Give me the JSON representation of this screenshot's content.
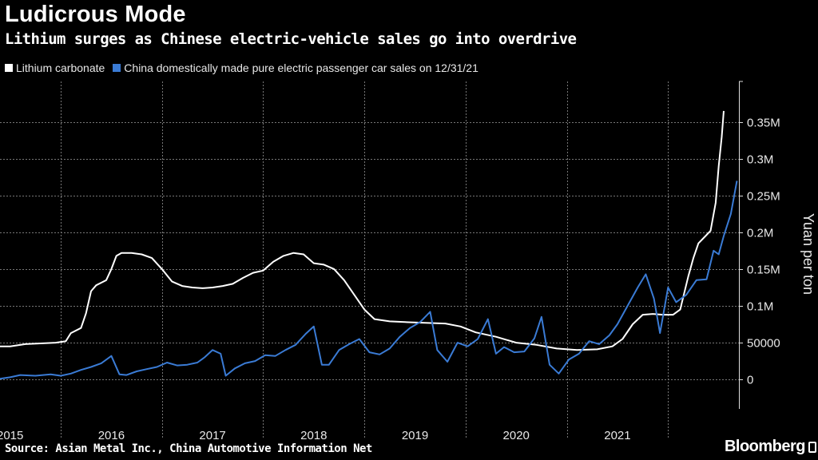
{
  "title": "Ludicrous Mode",
  "subtitle": "Lithium surges as Chinese electric-vehicle sales go into overdrive",
  "source": "Source: Asian Metal Inc., China Automotive Information Net",
  "brand": "Bloomberg",
  "colors": {
    "background": "#000000",
    "lithium": "#ffffff",
    "ev_sales": "#3a7bd5",
    "grid": "#666666"
  },
  "chart_data": {
    "type": "line",
    "title": "Ludicrous Mode",
    "subtitle": "Lithium surges as Chinese electric-vehicle sales go into overdrive",
    "xlabel": "",
    "ylabel": "Yuan per ton",
    "xlim": [
      2014.9,
      2022.2
    ],
    "ylim": [
      -40000,
      405000
    ],
    "x_ticks": [
      2015,
      2016,
      2017,
      2018,
      2019,
      2020,
      2021
    ],
    "x_tick_labels": [
      "2015",
      "2016",
      "2017",
      "2018",
      "2019",
      "2020",
      "2021"
    ],
    "y_ticks": [
      0,
      50000,
      100000,
      150000,
      200000,
      250000,
      300000,
      350000
    ],
    "y_tick_labels": [
      "0",
      "50000",
      "0.1M",
      "0.15M",
      "0.2M",
      "0.25M",
      "0.3M",
      "0.35M"
    ],
    "grid": true,
    "legend_position": "top-left",
    "series": [
      {
        "name": "Lithium carbonate",
        "color": "#ffffff",
        "points": [
          [
            2014.9,
            45000
          ],
          [
            2015.0,
            45000
          ],
          [
            2015.15,
            48000
          ],
          [
            2015.3,
            49000
          ],
          [
            2015.45,
            50000
          ],
          [
            2015.55,
            52000
          ],
          [
            2015.6,
            63000
          ],
          [
            2015.7,
            70000
          ],
          [
            2015.75,
            90000
          ],
          [
            2015.8,
            120000
          ],
          [
            2015.85,
            128000
          ],
          [
            2015.95,
            135000
          ],
          [
            2016.0,
            150000
          ],
          [
            2016.05,
            168000
          ],
          [
            2016.1,
            172000
          ],
          [
            2016.2,
            172000
          ],
          [
            2016.3,
            170000
          ],
          [
            2016.4,
            165000
          ],
          [
            2016.5,
            150000
          ],
          [
            2016.6,
            133000
          ],
          [
            2016.7,
            127000
          ],
          [
            2016.8,
            125000
          ],
          [
            2016.9,
            124000
          ],
          [
            2017.0,
            125000
          ],
          [
            2017.1,
            127000
          ],
          [
            2017.2,
            130000
          ],
          [
            2017.3,
            138000
          ],
          [
            2017.4,
            145000
          ],
          [
            2017.5,
            148000
          ],
          [
            2017.6,
            160000
          ],
          [
            2017.7,
            168000
          ],
          [
            2017.8,
            172000
          ],
          [
            2017.9,
            170000
          ],
          [
            2018.0,
            158000
          ],
          [
            2018.1,
            156000
          ],
          [
            2018.2,
            150000
          ],
          [
            2018.3,
            135000
          ],
          [
            2018.4,
            115000
          ],
          [
            2018.5,
            95000
          ],
          [
            2018.6,
            82000
          ],
          [
            2018.75,
            79000
          ],
          [
            2018.9,
            78000
          ],
          [
            2019.1,
            77000
          ],
          [
            2019.3,
            76000
          ],
          [
            2019.45,
            72000
          ],
          [
            2019.6,
            64000
          ],
          [
            2019.8,
            58000
          ],
          [
            2020.0,
            50000
          ],
          [
            2020.2,
            47000
          ],
          [
            2020.4,
            42000
          ],
          [
            2020.6,
            40000
          ],
          [
            2020.8,
            41000
          ],
          [
            2020.95,
            45000
          ],
          [
            2021.05,
            55000
          ],
          [
            2021.15,
            75000
          ],
          [
            2021.25,
            88000
          ],
          [
            2021.35,
            89000
          ],
          [
            2021.45,
            88000
          ],
          [
            2021.55,
            88000
          ],
          [
            2021.62,
            95000
          ],
          [
            2021.7,
            140000
          ],
          [
            2021.75,
            165000
          ],
          [
            2021.8,
            185000
          ],
          [
            2021.87,
            195000
          ],
          [
            2021.92,
            202000
          ],
          [
            2021.97,
            240000
          ],
          [
            2022.0,
            290000
          ],
          [
            2022.03,
            330000
          ],
          [
            2022.05,
            365000
          ]
        ]
      },
      {
        "name": "China domestically made pure electric passenger car sales on 12/31/21",
        "color": "#3a7bd5",
        "points": [
          [
            2014.9,
            1000
          ],
          [
            2015.0,
            3000
          ],
          [
            2015.1,
            6000
          ],
          [
            2015.25,
            5000
          ],
          [
            2015.4,
            7000
          ],
          [
            2015.5,
            5000
          ],
          [
            2015.6,
            8000
          ],
          [
            2015.7,
            13000
          ],
          [
            2015.8,
            17000
          ],
          [
            2015.9,
            22000
          ],
          [
            2016.0,
            32000
          ],
          [
            2016.08,
            7000
          ],
          [
            2016.15,
            6000
          ],
          [
            2016.25,
            11000
          ],
          [
            2016.35,
            14000
          ],
          [
            2016.45,
            17000
          ],
          [
            2016.55,
            23000
          ],
          [
            2016.65,
            19000
          ],
          [
            2016.75,
            20000
          ],
          [
            2016.85,
            23000
          ],
          [
            2016.92,
            30000
          ],
          [
            2017.0,
            40000
          ],
          [
            2017.08,
            35000
          ],
          [
            2017.13,
            5000
          ],
          [
            2017.22,
            15000
          ],
          [
            2017.32,
            22000
          ],
          [
            2017.42,
            25000
          ],
          [
            2017.52,
            33000
          ],
          [
            2017.62,
            32000
          ],
          [
            2017.72,
            40000
          ],
          [
            2017.82,
            47000
          ],
          [
            2017.92,
            62000
          ],
          [
            2018.0,
            72000
          ],
          [
            2018.08,
            20000
          ],
          [
            2018.15,
            20000
          ],
          [
            2018.25,
            40000
          ],
          [
            2018.35,
            48000
          ],
          [
            2018.45,
            55000
          ],
          [
            2018.55,
            37000
          ],
          [
            2018.65,
            34000
          ],
          [
            2018.75,
            42000
          ],
          [
            2018.85,
            58000
          ],
          [
            2018.95,
            70000
          ],
          [
            2019.05,
            78000
          ],
          [
            2019.15,
            92000
          ],
          [
            2019.22,
            40000
          ],
          [
            2019.32,
            24000
          ],
          [
            2019.42,
            50000
          ],
          [
            2019.52,
            45000
          ],
          [
            2019.62,
            55000
          ],
          [
            2019.72,
            82000
          ],
          [
            2019.8,
            35000
          ],
          [
            2019.88,
            44000
          ],
          [
            2019.98,
            37000
          ],
          [
            2020.08,
            38000
          ],
          [
            2020.18,
            56000
          ],
          [
            2020.25,
            85000
          ],
          [
            2020.33,
            20000
          ],
          [
            2020.42,
            8000
          ],
          [
            2020.52,
            27000
          ],
          [
            2020.62,
            35000
          ],
          [
            2020.72,
            52000
          ],
          [
            2020.82,
            48000
          ],
          [
            2020.92,
            60000
          ],
          [
            2021.0,
            75000
          ],
          [
            2021.1,
            100000
          ],
          [
            2021.2,
            125000
          ],
          [
            2021.28,
            143000
          ],
          [
            2021.36,
            110000
          ],
          [
            2021.42,
            63000
          ],
          [
            2021.5,
            125000
          ],
          [
            2021.58,
            105000
          ],
          [
            2021.68,
            115000
          ],
          [
            2021.78,
            135000
          ],
          [
            2021.88,
            136000
          ],
          [
            2021.95,
            175000
          ],
          [
            2022.0,
            170000
          ],
          [
            2022.05,
            195000
          ],
          [
            2022.12,
            225000
          ],
          [
            2022.18,
            270000
          ]
        ]
      }
    ]
  }
}
